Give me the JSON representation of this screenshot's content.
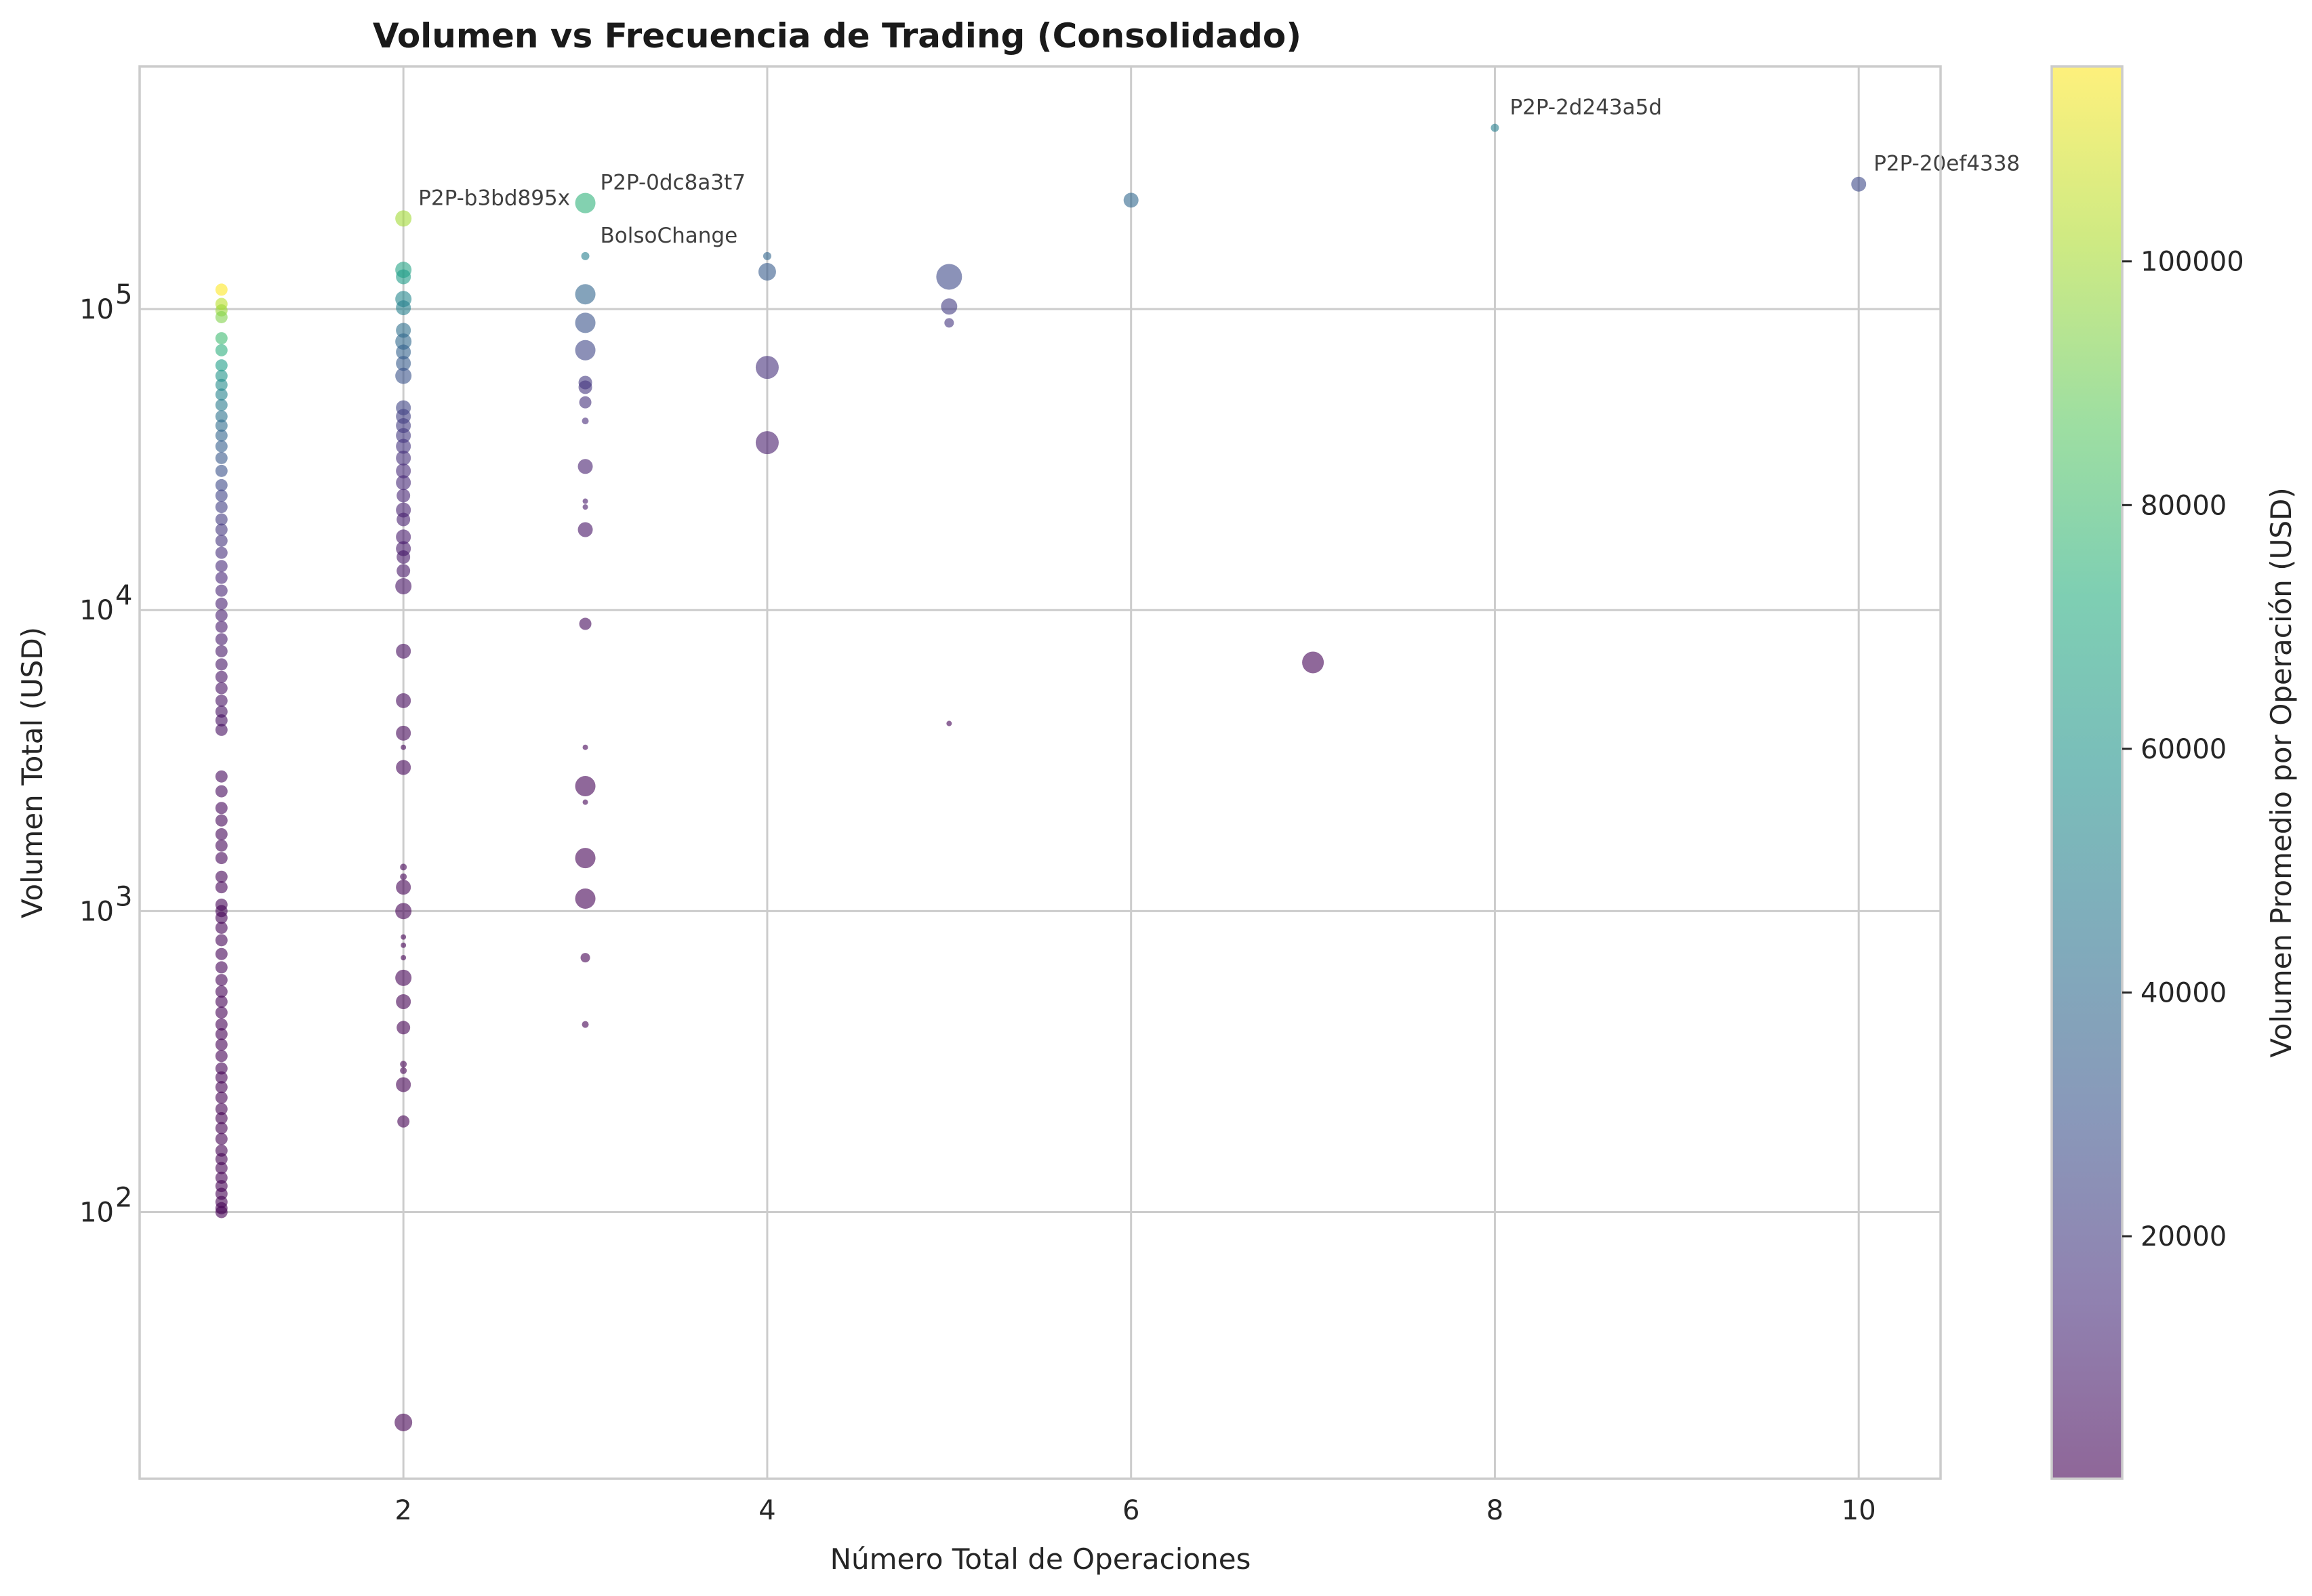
{
  "chart_data": {
    "type": "scatter",
    "title": "Volumen vs Frecuencia de Trading (Consolidado)",
    "xlabel": "Número Total de Operaciones",
    "ylabel": "Volumen Total (USD)",
    "colorbar_label": "Volumen Promedio por Operación (USD)",
    "colormap": "viridis",
    "alpha": 0.6,
    "grid": true,
    "xlim": [
      0.55,
      10.45
    ],
    "ylim": [
      13,
      640000
    ],
    "yscale": "log",
    "xticks": [
      2,
      4,
      6,
      8,
      10
    ],
    "xtick_labels": [
      "2",
      "4",
      "6",
      "8",
      "10"
    ],
    "yticks": [
      100,
      1000,
      10000,
      100000
    ],
    "ytick_labels": [
      "10",
      "10",
      "10",
      "10"
    ],
    "ytick_exponents": [
      "2",
      "3",
      "4",
      "5"
    ],
    "colorbar_range": [
      100,
      116000
    ],
    "colorbar_ticks": [
      20000,
      40000,
      60000,
      80000,
      100000
    ],
    "colorbar_tick_labels": [
      "20000",
      "40000",
      "60000",
      "80000",
      "100000"
    ],
    "annotations": [
      {
        "text": "P2P-2d243a5d",
        "x": 8,
        "y": 400000
      },
      {
        "text": "P2P-20ef4338",
        "x": 10,
        "y": 260000
      },
      {
        "text": "P2P-b3bd895x",
        "x": 2,
        "y": 200000
      },
      {
        "text": "P2P-0dc8a3t7",
        "x": 3,
        "y": 225000
      },
      {
        "text": "BolsoChange",
        "x": 3,
        "y": 150000
      }
    ],
    "points": [
      {
        "x": 1,
        "y": 116000,
        "c": 116000,
        "s": 18
      },
      {
        "x": 1,
        "y": 104000,
        "c": 104000,
        "s": 18
      },
      {
        "x": 1,
        "y": 99000,
        "c": 99000,
        "s": 18
      },
      {
        "x": 1,
        "y": 94000,
        "c": 94000,
        "s": 18
      },
      {
        "x": 1,
        "y": 80000,
        "c": 80000,
        "s": 18
      },
      {
        "x": 1,
        "y": 73000,
        "c": 73000,
        "s": 18
      },
      {
        "x": 1,
        "y": 65000,
        "c": 65000,
        "s": 18
      },
      {
        "x": 1,
        "y": 60000,
        "c": 60000,
        "s": 18
      },
      {
        "x": 1,
        "y": 56000,
        "c": 56000,
        "s": 18
      },
      {
        "x": 1,
        "y": 52000,
        "c": 52000,
        "s": 18
      },
      {
        "x": 1,
        "y": 48000,
        "c": 48000,
        "s": 18
      },
      {
        "x": 1,
        "y": 44000,
        "c": 44000,
        "s": 18
      },
      {
        "x": 1,
        "y": 41000,
        "c": 41000,
        "s": 18
      },
      {
        "x": 1,
        "y": 38000,
        "c": 38000,
        "s": 18
      },
      {
        "x": 1,
        "y": 35000,
        "c": 35000,
        "s": 18
      },
      {
        "x": 1,
        "y": 32000,
        "c": 32000,
        "s": 18
      },
      {
        "x": 1,
        "y": 29000,
        "c": 29000,
        "s": 18
      },
      {
        "x": 1,
        "y": 26000,
        "c": 26000,
        "s": 18
      },
      {
        "x": 1,
        "y": 24000,
        "c": 24000,
        "s": 18
      },
      {
        "x": 1,
        "y": 22000,
        "c": 22000,
        "s": 18
      },
      {
        "x": 1,
        "y": 20000,
        "c": 20000,
        "s": 18
      },
      {
        "x": 1,
        "y": 18500,
        "c": 18500,
        "s": 18
      },
      {
        "x": 1,
        "y": 17000,
        "c": 17000,
        "s": 18
      },
      {
        "x": 1,
        "y": 15500,
        "c": 15500,
        "s": 18
      },
      {
        "x": 1,
        "y": 14000,
        "c": 14000,
        "s": 18
      },
      {
        "x": 1,
        "y": 12800,
        "c": 12800,
        "s": 18
      },
      {
        "x": 1,
        "y": 11600,
        "c": 11600,
        "s": 18
      },
      {
        "x": 1,
        "y": 10500,
        "c": 10500,
        "s": 18
      },
      {
        "x": 1,
        "y": 9600,
        "c": 9600,
        "s": 18
      },
      {
        "x": 1,
        "y": 8800,
        "c": 8800,
        "s": 18
      },
      {
        "x": 1,
        "y": 8000,
        "c": 8000,
        "s": 18
      },
      {
        "x": 1,
        "y": 7300,
        "c": 7300,
        "s": 18
      },
      {
        "x": 1,
        "y": 6600,
        "c": 6600,
        "s": 18
      },
      {
        "x": 1,
        "y": 6000,
        "c": 6000,
        "s": 18
      },
      {
        "x": 1,
        "y": 5500,
        "c": 5500,
        "s": 18
      },
      {
        "x": 1,
        "y": 5000,
        "c": 5000,
        "s": 18
      },
      {
        "x": 1,
        "y": 4600,
        "c": 4600,
        "s": 18
      },
      {
        "x": 1,
        "y": 4300,
        "c": 4300,
        "s": 18
      },
      {
        "x": 1,
        "y": 4000,
        "c": 4000,
        "s": 18
      },
      {
        "x": 1,
        "y": 2800,
        "c": 2800,
        "s": 18
      },
      {
        "x": 1,
        "y": 2500,
        "c": 2500,
        "s": 18
      },
      {
        "x": 1,
        "y": 2200,
        "c": 2200,
        "s": 18
      },
      {
        "x": 1,
        "y": 2000,
        "c": 2000,
        "s": 18
      },
      {
        "x": 1,
        "y": 1800,
        "c": 1800,
        "s": 18
      },
      {
        "x": 1,
        "y": 1650,
        "c": 1650,
        "s": 18
      },
      {
        "x": 1,
        "y": 1500,
        "c": 1500,
        "s": 18
      },
      {
        "x": 1,
        "y": 1300,
        "c": 1300,
        "s": 18
      },
      {
        "x": 1,
        "y": 1200,
        "c": 1200,
        "s": 18
      },
      {
        "x": 1,
        "y": 1050,
        "c": 1050,
        "s": 18
      },
      {
        "x": 1,
        "y": 1000,
        "c": 1000,
        "s": 18
      },
      {
        "x": 1,
        "y": 950,
        "c": 950,
        "s": 18
      },
      {
        "x": 1,
        "y": 880,
        "c": 880,
        "s": 18
      },
      {
        "x": 1,
        "y": 800,
        "c": 800,
        "s": 18
      },
      {
        "x": 1,
        "y": 720,
        "c": 720,
        "s": 18
      },
      {
        "x": 1,
        "y": 650,
        "c": 650,
        "s": 18
      },
      {
        "x": 1,
        "y": 590,
        "c": 590,
        "s": 18
      },
      {
        "x": 1,
        "y": 540,
        "c": 540,
        "s": 18
      },
      {
        "x": 1,
        "y": 500,
        "c": 500,
        "s": 18
      },
      {
        "x": 1,
        "y": 460,
        "c": 460,
        "s": 18
      },
      {
        "x": 1,
        "y": 420,
        "c": 420,
        "s": 18
      },
      {
        "x": 1,
        "y": 390,
        "c": 390,
        "s": 18
      },
      {
        "x": 1,
        "y": 360,
        "c": 360,
        "s": 18
      },
      {
        "x": 1,
        "y": 330,
        "c": 330,
        "s": 18
      },
      {
        "x": 1,
        "y": 300,
        "c": 300,
        "s": 18
      },
      {
        "x": 1,
        "y": 280,
        "c": 280,
        "s": 18
      },
      {
        "x": 1,
        "y": 260,
        "c": 260,
        "s": 18
      },
      {
        "x": 1,
        "y": 240,
        "c": 240,
        "s": 18
      },
      {
        "x": 1,
        "y": 220,
        "c": 220,
        "s": 18
      },
      {
        "x": 1,
        "y": 205,
        "c": 205,
        "s": 18
      },
      {
        "x": 1,
        "y": 190,
        "c": 190,
        "s": 18
      },
      {
        "x": 1,
        "y": 175,
        "c": 175,
        "s": 18
      },
      {
        "x": 1,
        "y": 160,
        "c": 160,
        "s": 18
      },
      {
        "x": 1,
        "y": 150,
        "c": 150,
        "s": 18
      },
      {
        "x": 1,
        "y": 140,
        "c": 140,
        "s": 18
      },
      {
        "x": 1,
        "y": 130,
        "c": 130,
        "s": 18
      },
      {
        "x": 1,
        "y": 122,
        "c": 122,
        "s": 18
      },
      {
        "x": 1,
        "y": 115,
        "c": 115,
        "s": 18
      },
      {
        "x": 1,
        "y": 108,
        "c": 108,
        "s": 18
      },
      {
        "x": 1,
        "y": 103,
        "c": 103,
        "s": 18
      },
      {
        "x": 1,
        "y": 100,
        "c": 100,
        "s": 18
      },
      {
        "x": 2,
        "y": 200000,
        "c": 100000,
        "s": 24
      },
      {
        "x": 2,
        "y": 135000,
        "c": 67500,
        "s": 24
      },
      {
        "x": 2,
        "y": 128000,
        "c": 64000,
        "s": 22
      },
      {
        "x": 2,
        "y": 108000,
        "c": 54000,
        "s": 24
      },
      {
        "x": 2,
        "y": 101000,
        "c": 50500,
        "s": 22
      },
      {
        "x": 2,
        "y": 85000,
        "c": 42500,
        "s": 22
      },
      {
        "x": 2,
        "y": 78000,
        "c": 39000,
        "s": 24
      },
      {
        "x": 2,
        "y": 72000,
        "c": 36000,
        "s": 22
      },
      {
        "x": 2,
        "y": 66000,
        "c": 33000,
        "s": 22
      },
      {
        "x": 2,
        "y": 60000,
        "c": 30000,
        "s": 24
      },
      {
        "x": 2,
        "y": 47000,
        "c": 23500,
        "s": 22
      },
      {
        "x": 2,
        "y": 44000,
        "c": 22000,
        "s": 22
      },
      {
        "x": 2,
        "y": 41000,
        "c": 20500,
        "s": 22
      },
      {
        "x": 2,
        "y": 38000,
        "c": 19000,
        "s": 22
      },
      {
        "x": 2,
        "y": 35000,
        "c": 17500,
        "s": 22
      },
      {
        "x": 2,
        "y": 32000,
        "c": 16000,
        "s": 22
      },
      {
        "x": 2,
        "y": 29000,
        "c": 14500,
        "s": 22
      },
      {
        "x": 2,
        "y": 26500,
        "c": 13250,
        "s": 22
      },
      {
        "x": 2,
        "y": 24000,
        "c": 12000,
        "s": 20
      },
      {
        "x": 2,
        "y": 21500,
        "c": 10750,
        "s": 22
      },
      {
        "x": 2,
        "y": 20000,
        "c": 10000,
        "s": 20
      },
      {
        "x": 2,
        "y": 17500,
        "c": 8750,
        "s": 22
      },
      {
        "x": 2,
        "y": 16000,
        "c": 8000,
        "s": 22
      },
      {
        "x": 2,
        "y": 15000,
        "c": 7500,
        "s": 20
      },
      {
        "x": 2,
        "y": 13500,
        "c": 6750,
        "s": 20
      },
      {
        "x": 2,
        "y": 12000,
        "c": 6000,
        "s": 24
      },
      {
        "x": 2,
        "y": 7300,
        "c": 3650,
        "s": 22
      },
      {
        "x": 2,
        "y": 5000,
        "c": 2500,
        "s": 22
      },
      {
        "x": 2,
        "y": 3900,
        "c": 1950,
        "s": 22
      },
      {
        "x": 2,
        "y": 3500,
        "c": 1750,
        "s": 8
      },
      {
        "x": 2,
        "y": 3000,
        "c": 1500,
        "s": 22
      },
      {
        "x": 2,
        "y": 1400,
        "c": 700,
        "s": 10
      },
      {
        "x": 2,
        "y": 1300,
        "c": 650,
        "s": 10
      },
      {
        "x": 2,
        "y": 1200,
        "c": 600,
        "s": 22
      },
      {
        "x": 2,
        "y": 1000,
        "c": 500,
        "s": 24
      },
      {
        "x": 2,
        "y": 820,
        "c": 410,
        "s": 8
      },
      {
        "x": 2,
        "y": 770,
        "c": 385,
        "s": 8
      },
      {
        "x": 2,
        "y": 700,
        "c": 350,
        "s": 8
      },
      {
        "x": 2,
        "y": 600,
        "c": 300,
        "s": 24
      },
      {
        "x": 2,
        "y": 500,
        "c": 250,
        "s": 22
      },
      {
        "x": 2,
        "y": 410,
        "c": 205,
        "s": 20
      },
      {
        "x": 2,
        "y": 310,
        "c": 155,
        "s": 10
      },
      {
        "x": 2,
        "y": 295,
        "c": 147,
        "s": 10
      },
      {
        "x": 2,
        "y": 265,
        "c": 132,
        "s": 22
      },
      {
        "x": 2,
        "y": 200,
        "c": 100,
        "s": 18
      },
      {
        "x": 2,
        "y": 20,
        "c": 10,
        "s": 26
      },
      {
        "x": 3,
        "y": 225000,
        "c": 75000,
        "s": 30
      },
      {
        "x": 3,
        "y": 150000,
        "c": 50000,
        "s": 12
      },
      {
        "x": 3,
        "y": 112000,
        "c": 37300,
        "s": 30
      },
      {
        "x": 3,
        "y": 90000,
        "c": 30000,
        "s": 30
      },
      {
        "x": 3,
        "y": 73000,
        "c": 24300,
        "s": 30
      },
      {
        "x": 3,
        "y": 57000,
        "c": 19000,
        "s": 20
      },
      {
        "x": 3,
        "y": 55000,
        "c": 18300,
        "s": 20
      },
      {
        "x": 3,
        "y": 49000,
        "c": 16300,
        "s": 18
      },
      {
        "x": 3,
        "y": 42500,
        "c": 14200,
        "s": 10
      },
      {
        "x": 3,
        "y": 30000,
        "c": 10000,
        "s": 22
      },
      {
        "x": 3,
        "y": 23000,
        "c": 7700,
        "s": 8
      },
      {
        "x": 3,
        "y": 22000,
        "c": 7300,
        "s": 8
      },
      {
        "x": 3,
        "y": 18500,
        "c": 6200,
        "s": 22
      },
      {
        "x": 3,
        "y": 9000,
        "c": 3000,
        "s": 18
      },
      {
        "x": 3,
        "y": 3500,
        "c": 1170,
        "s": 8
      },
      {
        "x": 3,
        "y": 2600,
        "c": 870,
        "s": 30
      },
      {
        "x": 3,
        "y": 2300,
        "c": 770,
        "s": 8
      },
      {
        "x": 3,
        "y": 1500,
        "c": 500,
        "s": 30
      },
      {
        "x": 3,
        "y": 1100,
        "c": 370,
        "s": 30
      },
      {
        "x": 3,
        "y": 700,
        "c": 230,
        "s": 14
      },
      {
        "x": 3,
        "y": 420,
        "c": 140,
        "s": 10
      },
      {
        "x": 4,
        "y": 150000,
        "c": 37500,
        "s": 12
      },
      {
        "x": 4,
        "y": 133000,
        "c": 33200,
        "s": 26
      },
      {
        "x": 4,
        "y": 64000,
        "c": 16000,
        "s": 34
      },
      {
        "x": 4,
        "y": 36000,
        "c": 9000,
        "s": 34
      },
      {
        "x": 5,
        "y": 128000,
        "c": 25600,
        "s": 38
      },
      {
        "x": 5,
        "y": 102000,
        "c": 20400,
        "s": 24
      },
      {
        "x": 5,
        "y": 90000,
        "c": 18000,
        "s": 14
      },
      {
        "x": 5,
        "y": 4200,
        "c": 840,
        "s": 8
      },
      {
        "x": 6,
        "y": 230000,
        "c": 38300,
        "s": 22
      },
      {
        "x": 7,
        "y": 6700,
        "c": 960,
        "s": 32
      },
      {
        "x": 8,
        "y": 400000,
        "c": 50000,
        "s": 12
      },
      {
        "x": 10,
        "y": 260000,
        "c": 26000,
        "s": 22
      }
    ]
  }
}
